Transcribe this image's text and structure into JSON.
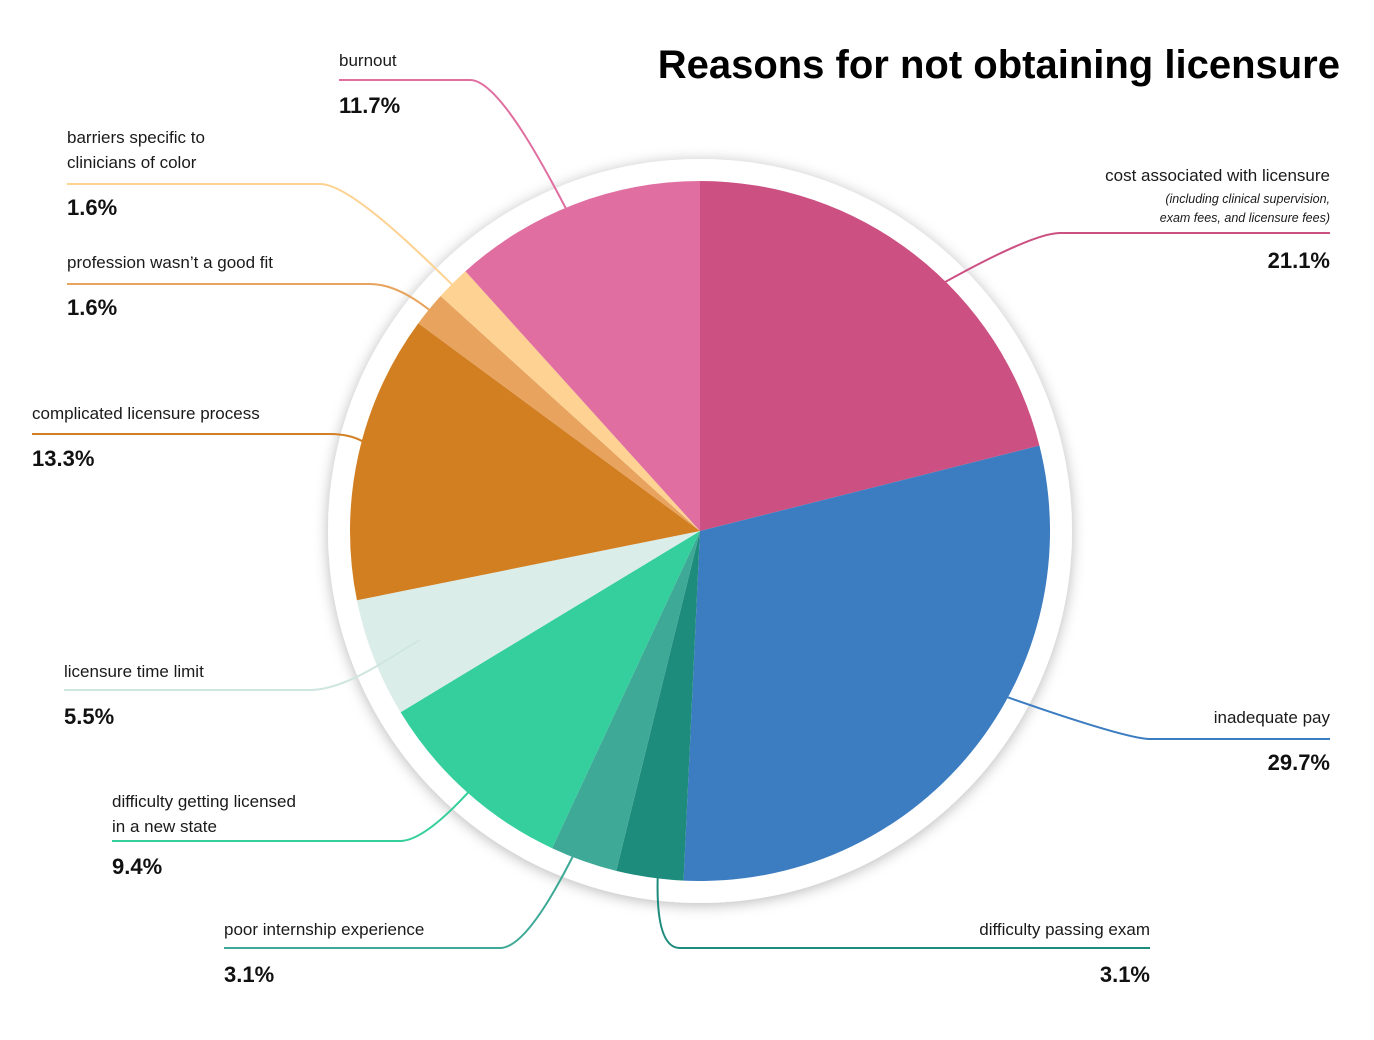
{
  "chart_data": {
    "type": "pie",
    "title": "Reasons for not obtaining licensure",
    "unit": "%",
    "start": "12 o'clock",
    "direction": "clockwise",
    "slices": [
      {
        "id": "cost",
        "label_lines": [
          "cost associated with licensure"
        ],
        "note_lines": [
          "(including clinical supervision,",
          "exam fees, and licensure fees)"
        ],
        "value": 21.1,
        "value_label": "21.1%",
        "color": "#cc5082",
        "line_color": "#cc5082"
      },
      {
        "id": "inadequate-pay",
        "label_lines": [
          "inadequate pay"
        ],
        "value": 29.7,
        "value_label": "29.7%",
        "color": "#3c7cc0",
        "line_color": "#3c7cc0"
      },
      {
        "id": "difficulty-passing-exam",
        "label_lines": [
          "difficulty passing exam"
        ],
        "value": 3.1,
        "value_label": "3.1%",
        "color": "#1e8c7c",
        "line_color": "#1e8c7c"
      },
      {
        "id": "poor-internship",
        "label_lines": [
          "poor internship experience"
        ],
        "value": 3.1,
        "value_label": "3.1%",
        "color": "#3ea996",
        "line_color": "#3ea996"
      },
      {
        "id": "new-state",
        "label_lines": [
          "difficulty getting licensed",
          "in a new state"
        ],
        "value": 9.4,
        "value_label": "9.4%",
        "color": "#34cf9c",
        "line_color": "#34cf9c"
      },
      {
        "id": "time-limit",
        "label_lines": [
          "licensure time limit"
        ],
        "value": 5.5,
        "value_label": "5.5%",
        "color": "#dbede9",
        "line_color": "#cfe5e0"
      },
      {
        "id": "complicated-process",
        "label_lines": [
          "complicated licensure process"
        ],
        "value": 13.3,
        "value_label": "13.3%",
        "color": "#d27f22",
        "line_color": "#d27f22"
      },
      {
        "id": "not-good-fit",
        "label_lines": [
          "profession wasn’t a good fit"
        ],
        "value": 1.6,
        "value_label": "1.6%",
        "color": "#e8a35e",
        "line_color": "#e8a35e"
      },
      {
        "id": "barriers-color",
        "label_lines": [
          "barriers specific to",
          "clinicians of color"
        ],
        "value": 1.6,
        "value_label": "1.6%",
        "color": "#fdd292",
        "line_color": "#fdd292"
      },
      {
        "id": "burnout",
        "label_lines": [
          "burnout"
        ],
        "value": 11.7,
        "value_label": "11.7%",
        "color": "#e06ea1",
        "line_color": "#e06ea1"
      }
    ]
  }
}
